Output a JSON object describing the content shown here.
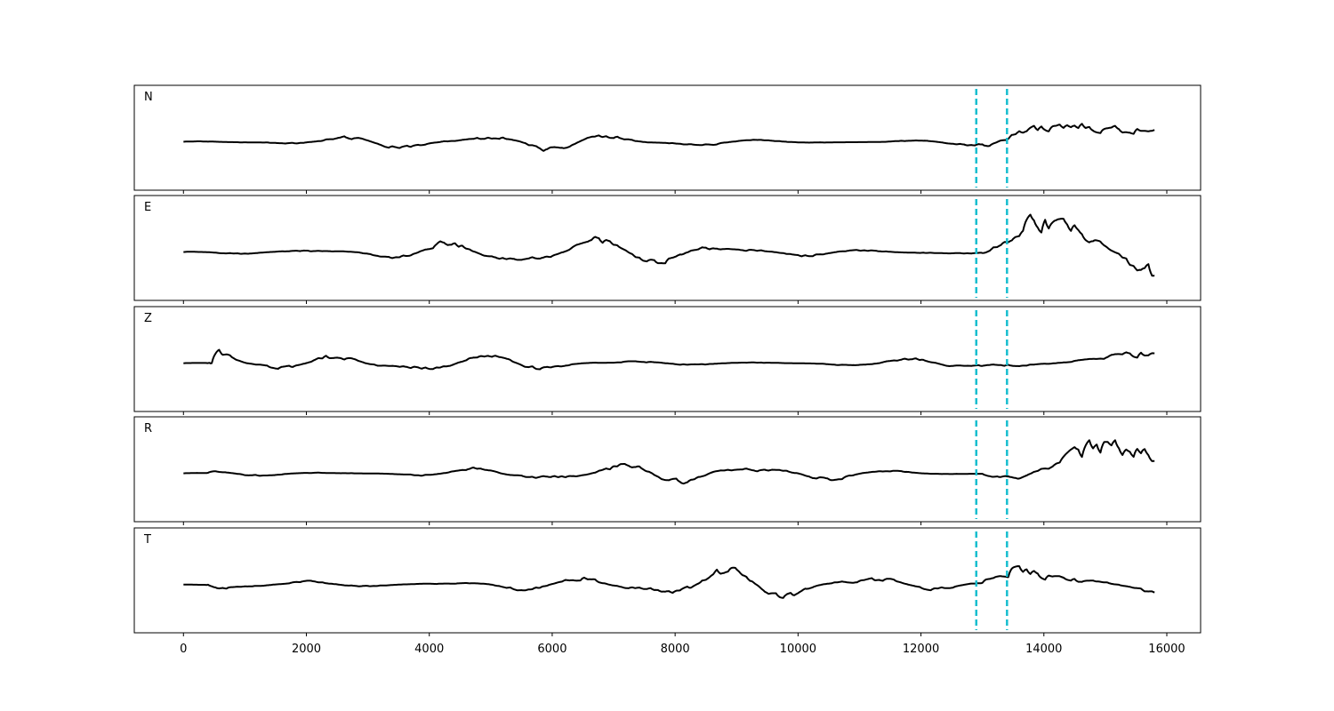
{
  "chart_data": {
    "type": "line",
    "xlim": [
      -800,
      16550
    ],
    "x_ticks": [
      0,
      2000,
      4000,
      6000,
      8000,
      10000,
      12000,
      14000,
      16000
    ],
    "grid": false,
    "line_color": "#000000",
    "pick_color": "#17becf",
    "picks": [
      12900,
      13400
    ],
    "sample_step": 20,
    "x_start": 0,
    "x_end": 15800,
    "panels": [
      {
        "label": "N",
        "noise": 0.25,
        "event": 0.85,
        "seed": 11
      },
      {
        "label": "E",
        "noise": 0.4,
        "event": 0.9,
        "seed": 23
      },
      {
        "label": "Z",
        "noise": 0.25,
        "event": 0.35,
        "seed": 37,
        "first_arrival": 1.0
      },
      {
        "label": "R",
        "noise": 0.3,
        "event": 0.95,
        "seed": 41
      },
      {
        "label": "T",
        "noise": 0.4,
        "event": 0.9,
        "seed": 53
      }
    ]
  }
}
